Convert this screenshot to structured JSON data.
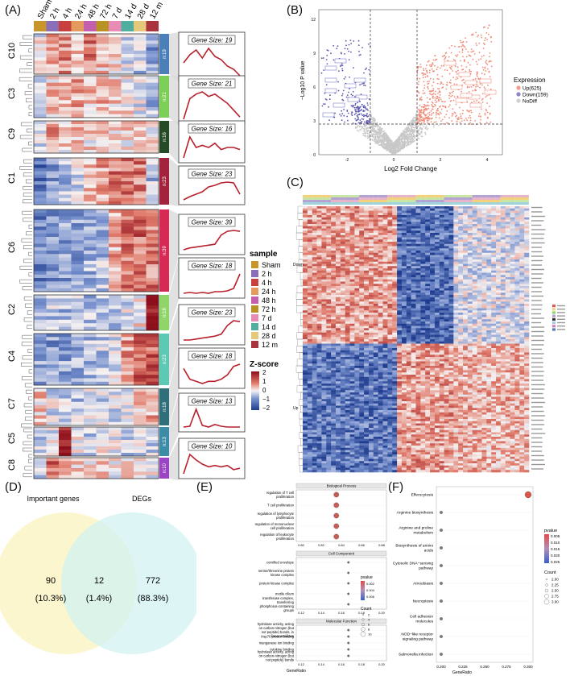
{
  "panels": {
    "A": "(A)",
    "B": "(B)",
    "C": "(C)",
    "D": "(D)",
    "E": "(E)",
    "F": "(F)"
  },
  "panelA": {
    "samples": [
      "Sham",
      "2 h",
      "4 h",
      "24 h",
      "48 h",
      "72 h",
      "7 d",
      "14 d",
      "28 d",
      "12 m"
    ],
    "sample_colors": [
      "#c9952b",
      "#8a6fb8",
      "#c9413e",
      "#e49a5c",
      "#c45fb0",
      "#b89223",
      "#e88bb5",
      "#4fae9e",
      "#e6c87a",
      "#a9343d"
    ],
    "clusters": [
      {
        "name": "C10",
        "n": "n:19",
        "gene_size": "Gene Size: 19",
        "color": "#4a7fb8"
      },
      {
        "name": "C3",
        "n": "n:21",
        "gene_size": "Gene Size: 21",
        "color": "#7ccf56"
      },
      {
        "name": "C9",
        "n": "n:16",
        "gene_size": "Gene Size: 16",
        "color": "#254a25"
      },
      {
        "name": "C1",
        "n": "n:23",
        "gene_size": "Gene Size: 23",
        "color": "#a3223c"
      },
      {
        "name": "C6",
        "n": "n:39",
        "gene_size": "Gene Size: 39",
        "color": "#d62a55"
      },
      {
        "name": "C2",
        "n": "n:18",
        "gene_size": "Gene Size: 18",
        "color": "#8fd56a"
      },
      {
        "name": "C4",
        "n": "n:23",
        "gene_size": "Gene Size: 23",
        "color": "#5cc9b4"
      },
      {
        "name": "C7",
        "n": "n:18",
        "gene_size": "Gene Size: 18",
        "color": "#2f6f79"
      },
      {
        "name": "C5",
        "n": "n:13",
        "gene_size": "Gene Size: 13",
        "color": "#3c8ca8"
      },
      {
        "name": "C8",
        "n": "n:10",
        "gene_size": "Gene Size: 10",
        "color": "#9b44c4"
      }
    ],
    "legend_title": "sample",
    "zscore_title": "Z-score",
    "zscore_ticks": [
      "2",
      "1",
      "0",
      "−1",
      "−2"
    ]
  },
  "panelB": {
    "ylabel": "−Log10 P value",
    "xlabel": "Log2 Fold Change",
    "legend_title": "Expression",
    "legend": [
      {
        "label": "Up(625)",
        "color": "#f19b8a"
      },
      {
        "label": "Down(159)",
        "color": "#8a86c8"
      },
      {
        "label": "NoDiff",
        "color": "#cfcfcf"
      }
    ],
    "xticks": [
      "-2",
      "0",
      "2",
      "4"
    ],
    "yticks": [
      "0",
      "3",
      "6",
      "9",
      "12"
    ]
  },
  "panelC": {
    "row_groups": [
      "Down",
      "Up"
    ]
  },
  "panelD": {
    "left_title": "Important genes",
    "right_title": "DEGs",
    "left_count": "90",
    "left_pct": "(10.3%)",
    "mid_count": "12",
    "mid_pct": "(1.4%)",
    "right_count": "772",
    "right_pct": "(88.3%)",
    "left_color": "#fbf5c8",
    "right_color": "#d2f1f1"
  },
  "panelE": {
    "facets": [
      {
        "title": "Biological Process",
        "terms": [
          "regulation of T cell proliferation",
          "T cell proliferation",
          "regulation of lymphocyte proliferation",
          "regulation of mononuclear cell proliferation",
          "regulation of leukocyte proliferation"
        ],
        "xticks": [
          "0.80",
          "0.82",
          "0.84",
          "0.86",
          "0.88"
        ],
        "gene_ratio": [
          0.835,
          0.835,
          0.835,
          0.835,
          0.835
        ]
      },
      {
        "title": "Cell Component",
        "terms": [
          "cornified envelope",
          "serine/threonine protein kinase complex",
          "protein kinase complex",
          "motile cilium",
          "transferase complex, transferring phosphorus-containing groups"
        ],
        "xticks": [
          "0.12",
          "0.14",
          "0.16",
          "0.18",
          "0.20"
        ],
        "gene_ratio": [
          0.167,
          0.167,
          0.167,
          0.167,
          0.167
        ]
      },
      {
        "title": "Molecular Function",
        "terms": [
          "hydrolase activity, acting on carbon-nitrogen (but not peptide) bonds, in linear amidines",
          "Hsp70 protein binding",
          "manganese ion binding",
          "cytokine binding",
          "hydrolase activity, acting on carbon-nitrogen (but not peptide) bonds"
        ],
        "xticks": [
          "0.12",
          "0.14",
          "0.16",
          "0.18",
          "0.20"
        ],
        "gene_ratio": [
          0.167,
          0.167,
          0.167,
          0.167,
          0.167
        ]
      }
    ],
    "xlabel": "GeneRatio",
    "legend_pvalue_title": "pvalue",
    "legend_pvalue_ticks": [
      "0.002",
      "0.004",
      "0.006"
    ],
    "legend_count_title": "Count",
    "legend_count_ticks": [
      "2",
      "4",
      "6",
      "8",
      "10"
    ]
  },
  "panelF": {
    "terms": [
      "Efferocytosis",
      "Arginine biosynthesis",
      "Arginine and proline metabolism",
      "Biosynthesis of amino acids",
      "Cytosolic DNA−sensing pathway",
      "Amoebiasis",
      "Necroptosis",
      "Cell adhesion molecules",
      "NOD−like receptor signaling pathway",
      "Salmonella infection"
    ],
    "gene_ratio": [
      0.3,
      0.2,
      0.2,
      0.2,
      0.2,
      0.2,
      0.2,
      0.2,
      0.2,
      0.2
    ],
    "xticks": [
      "0.200",
      "0.225",
      "0.250",
      "0.275",
      "0.300"
    ],
    "xlabel": "GeneRatio",
    "legend_pvalue_title": "pvalue",
    "legend_pvalue_ticks": [
      "0.005",
      "0.010",
      "0.015",
      "0.020",
      "0.025"
    ],
    "legend_count_title": "Count",
    "legend_count_ticks": [
      "2.00",
      "2.25",
      "2.50",
      "2.75",
      "3.00"
    ]
  }
}
